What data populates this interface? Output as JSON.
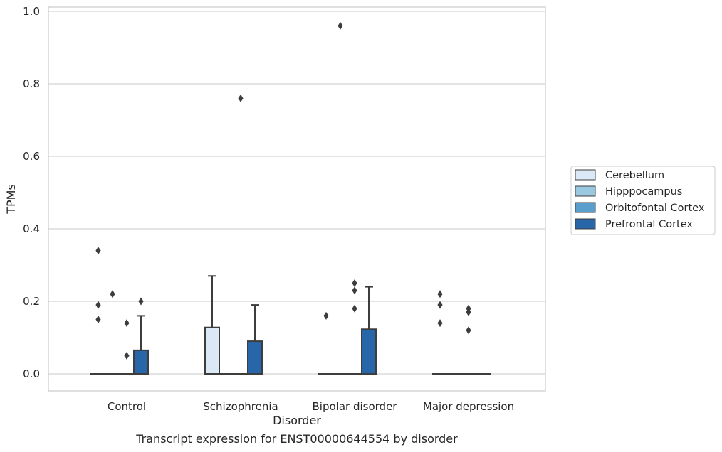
{
  "chart_data": {
    "type": "box",
    "title": "Transcript expression for ENST00000644554 by disorder",
    "xlabel": "Disorder",
    "ylabel": "TPMs",
    "categories": [
      "Control",
      "Schizophrenia",
      "Bipolar disorder",
      "Major depression"
    ],
    "yticks": [
      "0.0",
      "0.2",
      "0.4",
      "0.6",
      "0.8",
      "1.0"
    ],
    "ylim": [
      -0.045,
      1.01
    ],
    "grid": "horizontal",
    "legend_position": "right",
    "colors": {
      "Cerebellum": "#dbe9f6",
      "Hipppocampus": "#9ac8e0",
      "Orbitofontal Cortex": "#5a9ecd",
      "Prefrontal Cortex": "#2766a8"
    },
    "series": [
      {
        "name": "Cerebellum",
        "boxes": [
          {
            "q1": 0,
            "median": 0,
            "q3": 0,
            "whisker_low": 0,
            "whisker_high": 0,
            "outliers": [
              0.34,
              0.19,
              0.15
            ]
          },
          {
            "q1": 0,
            "median": 0,
            "q3": 0.128,
            "whisker_low": 0,
            "whisker_high": 0.27,
            "outliers": []
          },
          {
            "q1": 0,
            "median": 0,
            "q3": 0,
            "whisker_low": 0,
            "whisker_high": 0,
            "outliers": [
              0.16
            ]
          },
          {
            "q1": 0,
            "median": 0,
            "q3": 0,
            "whisker_low": 0,
            "whisker_high": 0,
            "outliers": [
              0.22,
              0.19,
              0.14
            ]
          }
        ]
      },
      {
        "name": "Hipppocampus",
        "boxes": [
          {
            "q1": 0,
            "median": 0,
            "q3": 0,
            "whisker_low": 0,
            "whisker_high": 0,
            "outliers": [
              0.22
            ]
          },
          {
            "q1": 0,
            "median": 0,
            "q3": 0,
            "whisker_low": 0,
            "whisker_high": 0,
            "outliers": []
          },
          {
            "q1": 0,
            "median": 0,
            "q3": 0,
            "whisker_low": 0,
            "whisker_high": 0,
            "outliers": [
              0.96
            ]
          },
          {
            "q1": 0,
            "median": 0,
            "q3": 0,
            "whisker_low": 0,
            "whisker_high": 0,
            "outliers": []
          }
        ]
      },
      {
        "name": "Orbitofontal Cortex",
        "boxes": [
          {
            "q1": 0,
            "median": 0,
            "q3": 0,
            "whisker_low": 0,
            "whisker_high": 0,
            "outliers": [
              0.14,
              0.05
            ]
          },
          {
            "q1": 0,
            "median": 0,
            "q3": 0,
            "whisker_low": 0,
            "whisker_high": 0,
            "outliers": [
              0.76
            ]
          },
          {
            "q1": 0,
            "median": 0,
            "q3": 0,
            "whisker_low": 0,
            "whisker_high": 0,
            "outliers": [
              0.25,
              0.23,
              0.18
            ]
          },
          {
            "q1": 0,
            "median": 0,
            "q3": 0,
            "whisker_low": 0,
            "whisker_high": 0,
            "outliers": [
              0.18,
              0.17,
              0.12
            ]
          }
        ]
      },
      {
        "name": "Prefrontal Cortex",
        "boxes": [
          {
            "q1": 0,
            "median": 0,
            "q3": 0.065,
            "whisker_low": 0,
            "whisker_high": 0.16,
            "outliers": [
              0.2
            ]
          },
          {
            "q1": 0,
            "median": 0,
            "q3": 0.09,
            "whisker_low": 0,
            "whisker_high": 0.19,
            "outliers": []
          },
          {
            "q1": 0,
            "median": 0,
            "q3": 0.123,
            "whisker_low": 0,
            "whisker_high": 0.24,
            "outliers": []
          },
          {
            "q1": 0,
            "median": 0,
            "q3": 0,
            "whisker_low": 0,
            "whisker_high": 0,
            "outliers": []
          }
        ]
      }
    ]
  }
}
